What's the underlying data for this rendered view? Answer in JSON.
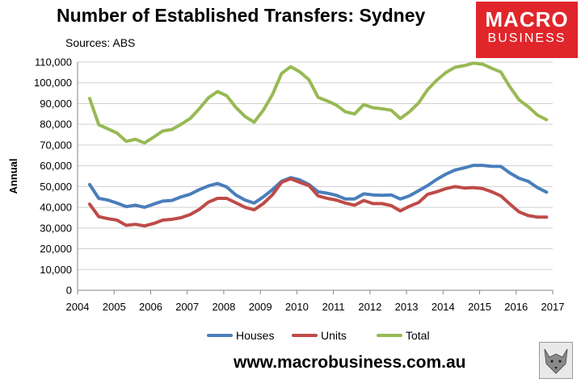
{
  "title": "Number of Established Transfers: Sydney",
  "subtitle": "Sources: ABS",
  "logo": {
    "line1": "MACRO",
    "line2": "BUSINESS",
    "color": "#e0262b"
  },
  "footer": "www.macrobusiness.com.au",
  "chart_data": {
    "type": "line",
    "title": "Number of Established Transfers: Sydney",
    "ylabel": "Annual",
    "xlabel": "",
    "ylim": [
      0,
      110000
    ],
    "xlim": [
      2004,
      2017
    ],
    "y_ticks": [
      "0",
      "10,000",
      "20,000",
      "30,000",
      "40,000",
      "50,000",
      "60,000",
      "70,000",
      "80,000",
      "90,000",
      "100,000",
      "110,000"
    ],
    "x_ticks": [
      "2004",
      "2005",
      "2006",
      "2007",
      "2008",
      "2009",
      "2010",
      "2011",
      "2012",
      "2013",
      "2014",
      "2015",
      "2016",
      "2017"
    ],
    "grid": true,
    "legend_position": "bottom",
    "x": [
      2004.33,
      2004.58,
      2004.83,
      2005.08,
      2005.33,
      2005.58,
      2005.83,
      2006.08,
      2006.33,
      2006.58,
      2006.83,
      2007.08,
      2007.33,
      2007.58,
      2007.83,
      2008.08,
      2008.33,
      2008.58,
      2008.83,
      2009.08,
      2009.33,
      2009.58,
      2009.83,
      2010.08,
      2010.33,
      2010.58,
      2010.83,
      2011.08,
      2011.33,
      2011.58,
      2011.83,
      2012.08,
      2012.33,
      2012.58,
      2012.83,
      2013.08,
      2013.33,
      2013.58,
      2013.83,
      2014.08,
      2014.33,
      2014.58,
      2014.83,
      2015.08,
      2015.33,
      2015.58,
      2015.83,
      2016.08,
      2016.33,
      2016.58,
      2016.83
    ],
    "series": [
      {
        "name": "Houses",
        "color": "#4a7ebb",
        "values": [
          51000,
          44300,
          43500,
          42000,
          40300,
          41000,
          40000,
          41500,
          43000,
          43300,
          45000,
          46300,
          48500,
          50300,
          51500,
          49800,
          46000,
          43500,
          42000,
          45000,
          48500,
          52500,
          54300,
          53200,
          51000,
          47500,
          46800,
          45800,
          44000,
          44000,
          46500,
          46000,
          45800,
          46000,
          44000,
          45500,
          48000,
          50500,
          53500,
          56000,
          58000,
          59000,
          60200,
          60200,
          59800,
          59700,
          56500,
          54000,
          52500,
          49500,
          47300
        ]
      },
      {
        "name": "Units",
        "color": "#be4b48",
        "values": [
          41500,
          35500,
          34500,
          33800,
          31300,
          31800,
          31000,
          32200,
          33800,
          34200,
          35000,
          36500,
          39000,
          42500,
          44300,
          44300,
          42200,
          40000,
          38800,
          41800,
          46000,
          52000,
          53800,
          52000,
          50500,
          45500,
          44300,
          43500,
          42000,
          41000,
          43300,
          41800,
          41800,
          40800,
          38300,
          40500,
          42300,
          46300,
          47500,
          49000,
          50000,
          49300,
          49500,
          49000,
          47500,
          45500,
          41500,
          37800,
          36000,
          35300,
          35300
        ]
      },
      {
        "name": "Total",
        "color": "#98b954",
        "values": [
          92500,
          79800,
          77800,
          75800,
          71800,
          72800,
          71000,
          73800,
          76800,
          77500,
          80000,
          82800,
          87500,
          92800,
          95800,
          93800,
          88200,
          83800,
          81000,
          86800,
          94300,
          104500,
          107800,
          105300,
          101500,
          93000,
          91300,
          89300,
          86000,
          85000,
          89500,
          88000,
          87500,
          86800,
          82800,
          86000,
          90300,
          96800,
          101300,
          105000,
          107500,
          108300,
          109500,
          109000,
          107000,
          105200,
          98000,
          91800,
          88500,
          84500,
          82200
        ]
      }
    ]
  }
}
